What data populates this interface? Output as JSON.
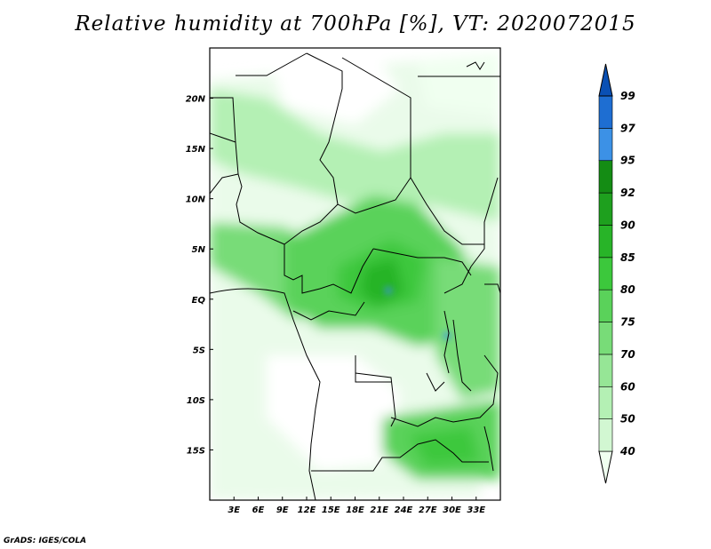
{
  "title": "Relative humidity at 700hPa [%], VT: 2020072015",
  "credit": "GrADS: IGES/COLA",
  "map": {
    "projection": "latlon",
    "lon_range": [
      0,
      36
    ],
    "lat_range": [
      -20,
      25
    ],
    "x_tick_labels": [
      "3E",
      "6E",
      "9E",
      "12E",
      "15E",
      "18E",
      "21E",
      "24E",
      "27E",
      "30E",
      "33E"
    ],
    "x_tick_values": [
      3,
      6,
      9,
      12,
      15,
      18,
      21,
      24,
      27,
      30,
      33
    ],
    "y_tick_labels": [
      "20N",
      "15N",
      "10N",
      "5N",
      "EQ",
      "5S",
      "10S",
      "15S"
    ],
    "y_tick_values": [
      20,
      15,
      10,
      5,
      0,
      -5,
      -10,
      -15
    ],
    "field": "relative humidity at 700hPa (%)",
    "moist_region_color": "#3ec83e",
    "dry_region_color": "#f0fff0"
  },
  "colorbar": {
    "levels": [
      "40",
      "50",
      "60",
      "70",
      "75",
      "80",
      "85",
      "90",
      "92",
      "95",
      "97",
      "99"
    ],
    "colors": [
      "#f0fff0",
      "#d2f7d2",
      "#b4f0b4",
      "#96e696",
      "#78dc78",
      "#5ad25a",
      "#3cc83c",
      "#28b428",
      "#1ea01e",
      "#148c14",
      "#3c91e6",
      "#1e6ed2",
      "#0a50b4"
    ]
  }
}
